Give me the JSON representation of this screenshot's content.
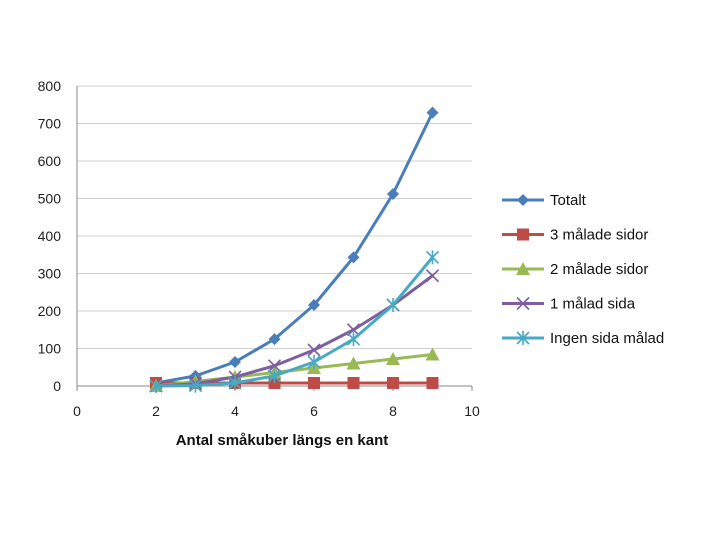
{
  "chart_data": {
    "type": "line",
    "title": "",
    "xlabel": "Antal småkuber längs en kant",
    "ylabel": "",
    "xlim": [
      0,
      10
    ],
    "ylim": [
      0,
      800
    ],
    "x_ticks": [
      0,
      2,
      4,
      6,
      8,
      10
    ],
    "y_ticks": [
      0,
      100,
      200,
      300,
      400,
      500,
      600,
      700,
      800
    ],
    "grid": "horizontal",
    "legend_position": "right",
    "x": [
      2,
      3,
      4,
      5,
      6,
      7,
      8,
      9
    ],
    "series": [
      {
        "name": "Totalt",
        "color": "#4a7ebb",
        "marker": "diamond",
        "values": [
          8,
          27,
          64,
          125,
          216,
          343,
          512,
          729
        ]
      },
      {
        "name": "3 målade sidor",
        "color": "#be4b48",
        "marker": "square",
        "values": [
          8,
          8,
          8,
          8,
          8,
          8,
          8,
          8
        ]
      },
      {
        "name": "2 målade sidor",
        "color": "#98b954",
        "marker": "triangle",
        "values": [
          0,
          12,
          24,
          36,
          48,
          60,
          72,
          84
        ]
      },
      {
        "name": "1 målad sida",
        "color": "#7d5fa0",
        "marker": "x",
        "values": [
          0,
          6,
          24,
          54,
          96,
          150,
          216,
          294
        ]
      },
      {
        "name": "Ingen sida målad",
        "color": "#46aac5",
        "marker": "asterisk",
        "values": [
          0,
          1,
          8,
          27,
          64,
          125,
          216,
          343
        ]
      }
    ]
  }
}
